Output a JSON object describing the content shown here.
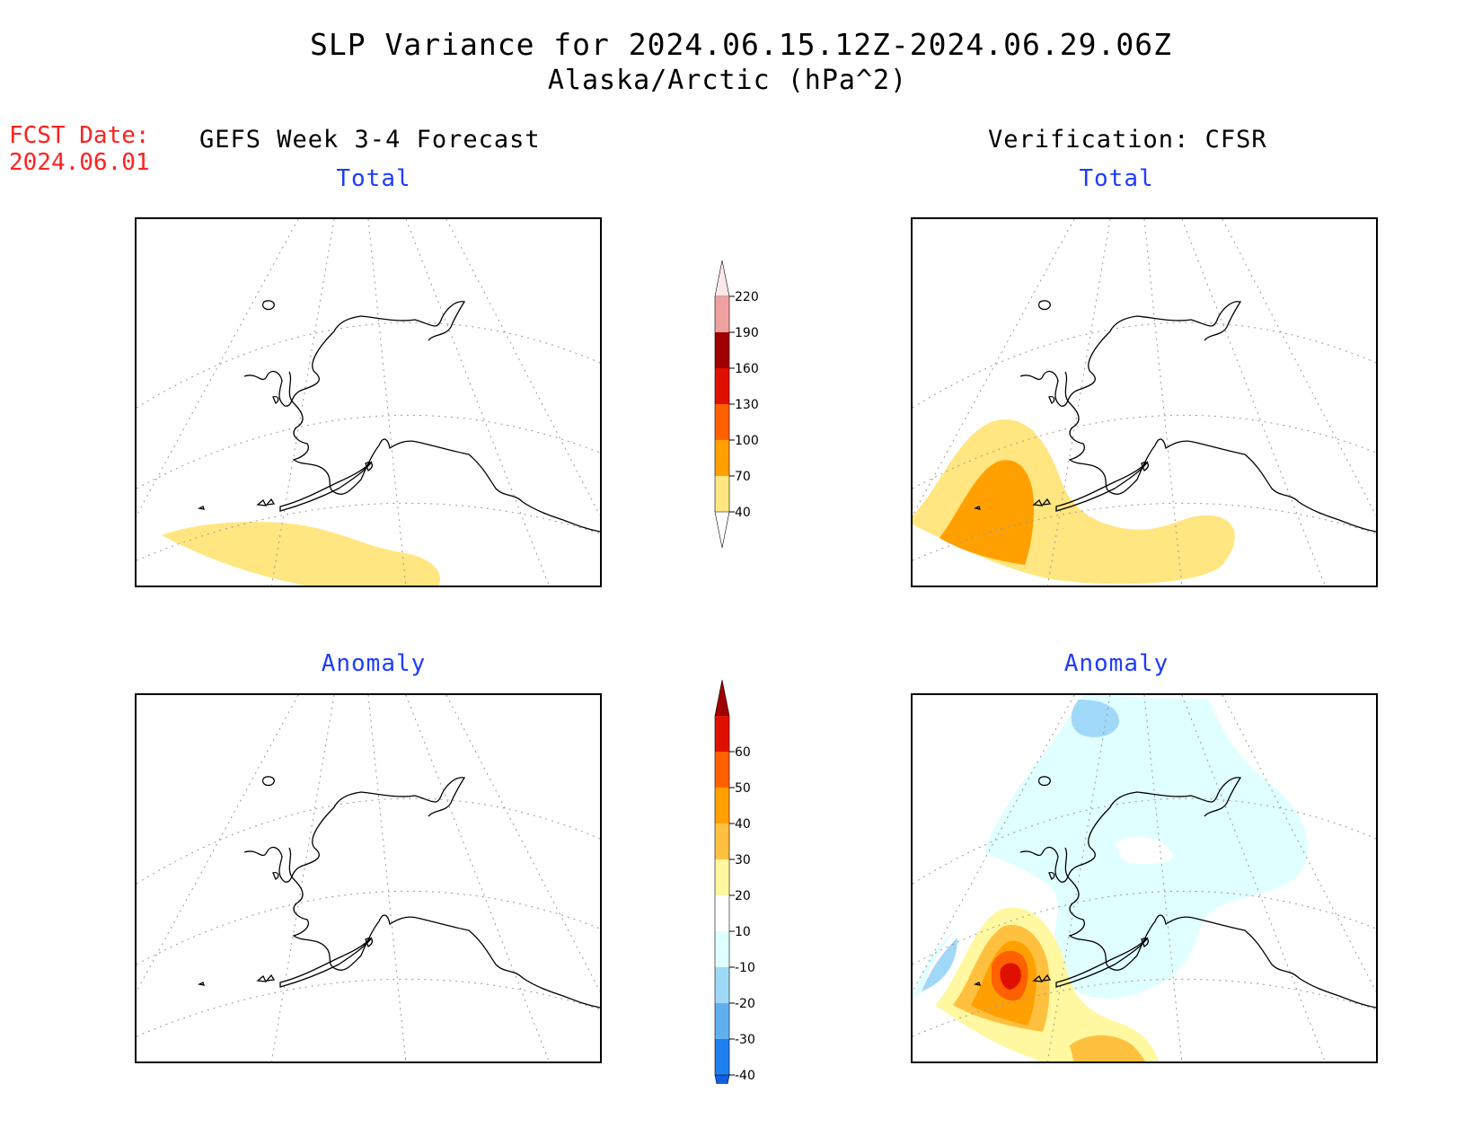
{
  "title": "SLP Variance for 2024.06.15.12Z-2024.06.29.06Z",
  "subtitle": "Alaska/Arctic (hPa^2)",
  "fcst_date_label": "FCST Date:",
  "fcst_date": "2024.06.01",
  "left_header": "GEFS Week 3-4 Forecast",
  "right_header": "Verification: CFSR",
  "panels": [
    {
      "title": "Total"
    },
    {
      "title": "Total"
    },
    {
      "title": "Anomaly"
    },
    {
      "title": "Anomaly"
    }
  ],
  "colors": {
    "title_text": "#000000",
    "fcst_date": "#ff2020",
    "panel_title": "#1e3cff"
  },
  "chart_data": [
    {
      "type": "heatmap",
      "name": "total_colorbar",
      "levels": [
        "40",
        "70",
        "100",
        "130",
        "160",
        "190",
        "220"
      ],
      "colors": [
        "#ffffff",
        "#ffe680",
        "#ffa000",
        "#ff6000",
        "#e01000",
        "#a00000",
        "#f0a0a0",
        "#ffe8e8"
      ]
    },
    {
      "type": "heatmap",
      "name": "anomaly_colorbar",
      "levels": [
        "-40",
        "-30",
        "-20",
        "-10",
        "10",
        "20",
        "30",
        "40",
        "50",
        "60"
      ],
      "colors": [
        "#1060e0",
        "#2080f0",
        "#60b0f0",
        "#a0d8f8",
        "#e0ffff",
        "#ffffff",
        "#fff8a0",
        "#ffc040",
        "#ffa000",
        "#ff6000",
        "#e01000",
        "#a00000"
      ]
    }
  ]
}
